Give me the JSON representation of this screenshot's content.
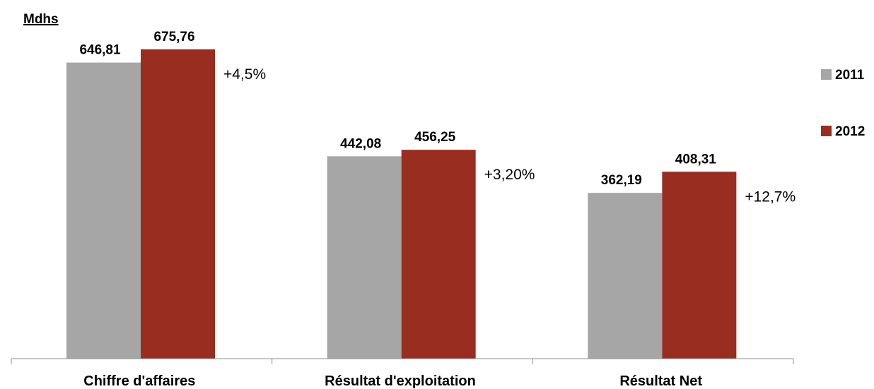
{
  "chart_data": {
    "type": "bar",
    "unit_label": "Mdhs",
    "categories": [
      "Chiffre d'affaires",
      "Résultat d'exploitation",
      "Résultat Net"
    ],
    "series": [
      {
        "name": "2011",
        "color": "#a6a6a6",
        "values": [
          646.81,
          442.08,
          362.19
        ],
        "labels": [
          "646,81",
          "442,08",
          "362,19"
        ]
      },
      {
        "name": "2012",
        "color": "#992e20",
        "values": [
          675.76,
          456.25,
          408.31
        ],
        "labels": [
          "675,76",
          "456,25",
          "408,31"
        ]
      }
    ],
    "growth_labels": [
      "+4,5%",
      "+3,20%",
      "+12,7%"
    ],
    "ylim": [
      0,
      690
    ],
    "legend_position": "right",
    "grid": false,
    "axis_color": "#8c8c8c"
  }
}
